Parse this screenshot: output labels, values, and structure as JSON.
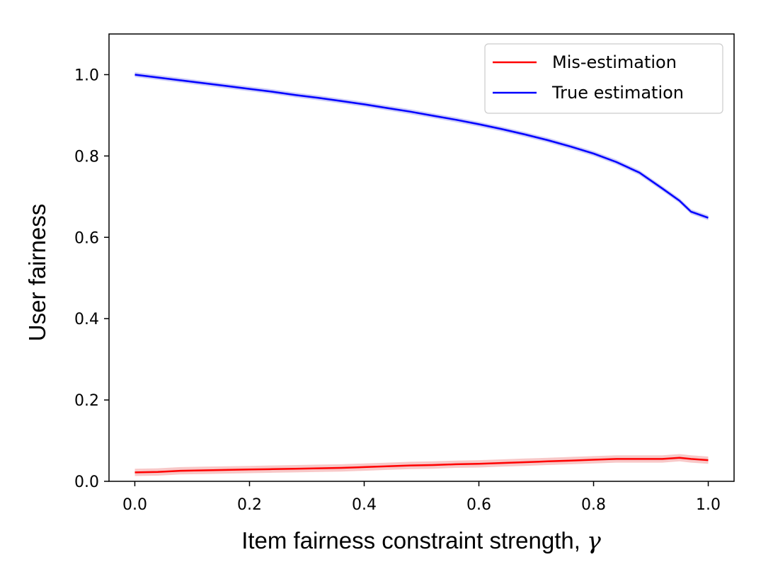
{
  "chart_data": {
    "type": "line",
    "title": "",
    "xlabel_main": "Item fairness constraint strength, ",
    "xlabel_symbol": "γ",
    "ylabel": "User fairness",
    "xlim": [
      -0.045,
      1.045
    ],
    "ylim": [
      0.0,
      1.1
    ],
    "xticks": [
      0.0,
      0.2,
      0.4,
      0.6,
      0.8,
      1.0
    ],
    "xtick_labels": [
      "0.0",
      "0.2",
      "0.4",
      "0.6",
      "0.8",
      "1.0"
    ],
    "yticks": [
      0.0,
      0.2,
      0.4,
      0.6,
      0.8,
      1.0
    ],
    "ytick_labels": [
      "0.0",
      "0.2",
      "0.4",
      "0.6",
      "0.8",
      "1.0"
    ],
    "grid": false,
    "legend_placement": "top-right",
    "x": [
      0.0,
      0.04,
      0.08,
      0.12,
      0.16,
      0.2,
      0.24,
      0.28,
      0.32,
      0.36,
      0.4,
      0.44,
      0.48,
      0.52,
      0.56,
      0.6,
      0.64,
      0.68,
      0.72,
      0.76,
      0.8,
      0.84,
      0.88,
      0.92,
      0.95,
      0.97,
      1.0
    ],
    "series": [
      {
        "name": "Mis-estimation",
        "color": "#ff0000",
        "band_color": "#f4a3a3",
        "values": [
          0.022,
          0.023,
          0.026,
          0.027,
          0.028,
          0.029,
          0.03,
          0.031,
          0.032,
          0.033,
          0.035,
          0.037,
          0.039,
          0.04,
          0.042,
          0.043,
          0.045,
          0.047,
          0.049,
          0.051,
          0.053,
          0.055,
          0.055,
          0.055,
          0.058,
          0.055,
          0.052
        ],
        "band_halfwidth": 0.009
      },
      {
        "name": "True estimation",
        "color": "#0000ff",
        "band_color": "#a9a9f5",
        "values": [
          1.0,
          0.993,
          0.986,
          0.979,
          0.972,
          0.965,
          0.958,
          0.95,
          0.943,
          0.935,
          0.927,
          0.918,
          0.909,
          0.899,
          0.889,
          0.878,
          0.866,
          0.853,
          0.839,
          0.823,
          0.806,
          0.785,
          0.759,
          0.72,
          0.69,
          0.663,
          0.648
        ],
        "band_halfwidth": 0.006
      }
    ]
  }
}
